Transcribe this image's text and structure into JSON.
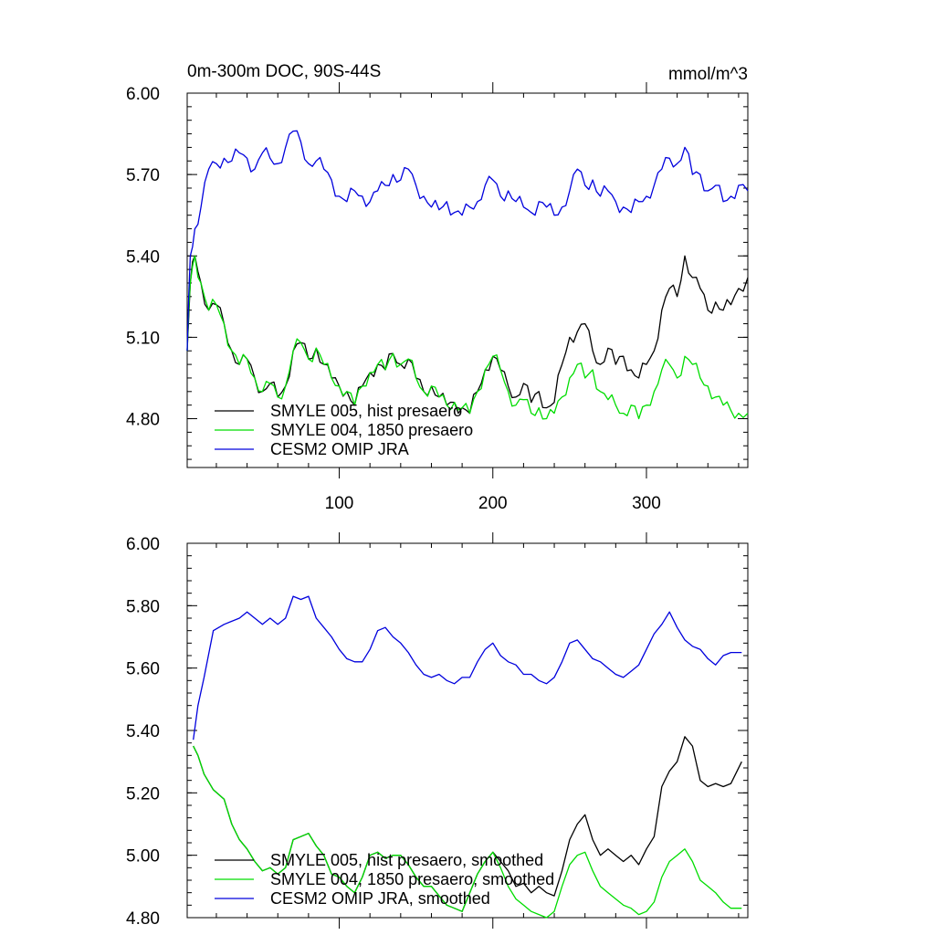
{
  "chart_data": [
    {
      "type": "line",
      "title": "0m-300m DOC, 90S-44S",
      "units": "mmol/m^3",
      "xlim": [
        1,
        366
      ],
      "ylim": [
        4.62,
        6.0
      ],
      "yticks": [
        4.8,
        5.1,
        5.4,
        5.7,
        6.0
      ],
      "ytick_labels": [
        "4.80",
        "5.10",
        "5.40",
        "5.70",
        "6.00"
      ],
      "xticks": [
        100,
        200,
        300
      ],
      "xtick_labels": [
        "100",
        "200",
        "300"
      ],
      "grid": false,
      "legend": "bottom-left",
      "series": [
        {
          "name": "SMYLE 005, hist presaero",
          "color": "#000000",
          "x": [
            1,
            3,
            6,
            10,
            15,
            20,
            25,
            30,
            35,
            40,
            45,
            50,
            55,
            60,
            65,
            70,
            75,
            80,
            85,
            90,
            95,
            100,
            105,
            110,
            115,
            120,
            125,
            130,
            135,
            140,
            145,
            150,
            155,
            160,
            165,
            170,
            175,
            180,
            185,
            190,
            195,
            200,
            205,
            210,
            215,
            220,
            225,
            230,
            235,
            240,
            245,
            250,
            255,
            260,
            265,
            270,
            275,
            280,
            285,
            290,
            295,
            300,
            305,
            310,
            315,
            320,
            325,
            330,
            335,
            340,
            345,
            350,
            355,
            360,
            366
          ],
          "y": [
            5.05,
            5.3,
            5.4,
            5.3,
            5.2,
            5.22,
            5.15,
            5.05,
            5.0,
            5.02,
            4.95,
            4.9,
            4.93,
            4.88,
            4.92,
            5.05,
            5.08,
            5.02,
            5.06,
            5.0,
            4.95,
            4.92,
            4.9,
            4.85,
            4.92,
            4.97,
            5.0,
            4.98,
            5.04,
            5.0,
            5.02,
            4.95,
            4.9,
            4.92,
            4.88,
            4.85,
            4.86,
            4.84,
            4.82,
            4.9,
            4.98,
            5.03,
            4.98,
            4.92,
            4.88,
            4.93,
            4.86,
            4.9,
            4.84,
            4.86,
            5.0,
            5.1,
            5.12,
            5.15,
            5.05,
            5.0,
            5.06,
            5.0,
            5.03,
            4.98,
            4.95,
            5.0,
            5.05,
            5.2,
            5.28,
            5.25,
            5.4,
            5.32,
            5.28,
            5.2,
            5.23,
            5.2,
            5.22,
            5.28,
            5.32
          ]
        },
        {
          "name": "SMYLE 004, 1850 presaero",
          "color": "#00dd00",
          "x": [
            1,
            3,
            6,
            10,
            15,
            20,
            25,
            30,
            35,
            40,
            45,
            50,
            55,
            60,
            65,
            70,
            75,
            80,
            85,
            90,
            95,
            100,
            105,
            110,
            115,
            120,
            125,
            130,
            135,
            140,
            145,
            150,
            155,
            160,
            165,
            170,
            175,
            180,
            185,
            190,
            195,
            200,
            205,
            210,
            215,
            220,
            225,
            230,
            235,
            240,
            245,
            250,
            255,
            260,
            265,
            270,
            275,
            280,
            285,
            290,
            295,
            300,
            305,
            310,
            315,
            320,
            325,
            330,
            335,
            340,
            345,
            350,
            355,
            360,
            366
          ],
          "y": [
            5.05,
            5.3,
            5.4,
            5.3,
            5.2,
            5.22,
            5.15,
            5.05,
            5.0,
            5.02,
            4.95,
            4.9,
            4.93,
            4.88,
            4.92,
            5.05,
            5.08,
            5.02,
            5.06,
            5.0,
            4.95,
            4.92,
            4.9,
            4.85,
            4.92,
            4.97,
            5.0,
            4.98,
            5.04,
            5.0,
            5.02,
            4.95,
            4.9,
            4.92,
            4.88,
            4.85,
            4.86,
            4.84,
            4.82,
            4.9,
            4.98,
            5.03,
            4.98,
            4.9,
            4.85,
            4.87,
            4.82,
            4.84,
            4.8,
            4.82,
            4.88,
            4.95,
            5.0,
            4.95,
            4.98,
            4.9,
            4.87,
            4.85,
            4.82,
            4.85,
            4.8,
            4.85,
            4.9,
            4.98,
            5.0,
            4.95,
            5.03,
            5.0,
            4.95,
            4.92,
            4.88,
            4.85,
            4.83,
            4.82,
            4.82
          ]
        },
        {
          "name": "CESM2 OMIP JRA",
          "color": "#0000dd",
          "x": [
            1,
            3,
            6,
            10,
            15,
            20,
            25,
            30,
            35,
            40,
            45,
            50,
            55,
            60,
            65,
            70,
            75,
            80,
            85,
            90,
            95,
            100,
            105,
            110,
            115,
            120,
            125,
            130,
            135,
            140,
            145,
            150,
            155,
            160,
            165,
            170,
            175,
            180,
            185,
            190,
            195,
            200,
            205,
            210,
            215,
            220,
            225,
            230,
            235,
            240,
            245,
            250,
            255,
            260,
            265,
            270,
            275,
            280,
            285,
            290,
            295,
            300,
            305,
            310,
            315,
            320,
            325,
            330,
            335,
            340,
            345,
            350,
            355,
            360,
            366
          ],
          "y": [
            5.05,
            5.4,
            5.5,
            5.58,
            5.72,
            5.74,
            5.76,
            5.75,
            5.78,
            5.76,
            5.72,
            5.78,
            5.76,
            5.74,
            5.8,
            5.86,
            5.82,
            5.74,
            5.75,
            5.72,
            5.68,
            5.62,
            5.6,
            5.64,
            5.62,
            5.6,
            5.64,
            5.66,
            5.7,
            5.68,
            5.72,
            5.66,
            5.62,
            5.58,
            5.57,
            5.6,
            5.56,
            5.55,
            5.58,
            5.6,
            5.66,
            5.68,
            5.62,
            5.64,
            5.6,
            5.58,
            5.56,
            5.6,
            5.58,
            5.55,
            5.58,
            5.64,
            5.72,
            5.66,
            5.68,
            5.62,
            5.64,
            5.6,
            5.58,
            5.56,
            5.6,
            5.62,
            5.66,
            5.72,
            5.76,
            5.74,
            5.8,
            5.7,
            5.7,
            5.64,
            5.66,
            5.6,
            5.62,
            5.66,
            5.64
          ]
        }
      ]
    },
    {
      "type": "line",
      "xlim": [
        1,
        366
      ],
      "ylim": [
        4.8,
        6.0
      ],
      "yticks": [
        4.8,
        5.0,
        5.2,
        5.4,
        5.6,
        5.8,
        6.0
      ],
      "ytick_labels": [
        "4.80",
        "5.00",
        "5.20",
        "5.40",
        "5.60",
        "5.80",
        "6.00"
      ],
      "xticks": [
        100,
        200,
        300
      ],
      "grid": false,
      "legend": "bottom-left",
      "series": [
        {
          "name": "SMYLE 005, hist presaero, smoothed",
          "color": "#000000",
          "x": [
            5,
            8,
            12,
            18,
            25,
            30,
            35,
            40,
            45,
            50,
            55,
            60,
            65,
            70,
            75,
            80,
            85,
            90,
            95,
            100,
            105,
            110,
            115,
            120,
            125,
            130,
            135,
            140,
            145,
            150,
            155,
            160,
            165,
            170,
            175,
            180,
            185,
            190,
            195,
            200,
            205,
            210,
            215,
            220,
            225,
            230,
            235,
            240,
            245,
            250,
            255,
            260,
            265,
            270,
            275,
            280,
            285,
            290,
            295,
            300,
            305,
            310,
            315,
            320,
            325,
            330,
            335,
            340,
            345,
            350,
            355,
            362
          ],
          "y": [
            5.35,
            5.32,
            5.26,
            5.21,
            5.18,
            5.1,
            5.05,
            5.02,
            4.98,
            4.95,
            4.96,
            4.94,
            4.96,
            5.05,
            5.06,
            5.07,
            5.03,
            5.0,
            4.94,
            4.93,
            4.9,
            4.88,
            4.93,
            5.0,
            5.01,
            4.99,
            5.0,
            5.0,
            4.97,
            4.93,
            4.9,
            4.9,
            4.87,
            4.84,
            4.83,
            4.82,
            4.88,
            4.94,
            4.98,
            5.01,
            4.98,
            4.95,
            4.9,
            4.91,
            4.88,
            4.9,
            4.88,
            4.87,
            4.95,
            5.05,
            5.1,
            5.13,
            5.05,
            5.0,
            5.02,
            5.0,
            4.98,
            5.0,
            4.97,
            5.02,
            5.06,
            5.22,
            5.27,
            5.3,
            5.38,
            5.35,
            5.24,
            5.22,
            5.23,
            5.22,
            5.23,
            5.3
          ]
        },
        {
          "name": "SMYLE 004, 1850 presaero, smoothed",
          "color": "#00dd00",
          "x": [
            5,
            8,
            12,
            18,
            25,
            30,
            35,
            40,
            45,
            50,
            55,
            60,
            65,
            70,
            75,
            80,
            85,
            90,
            95,
            100,
            105,
            110,
            115,
            120,
            125,
            130,
            135,
            140,
            145,
            150,
            155,
            160,
            165,
            170,
            175,
            180,
            185,
            190,
            195,
            200,
            205,
            210,
            215,
            220,
            225,
            230,
            235,
            240,
            245,
            250,
            255,
            260,
            265,
            270,
            275,
            280,
            285,
            290,
            295,
            300,
            305,
            310,
            315,
            320,
            325,
            330,
            335,
            340,
            345,
            350,
            355,
            362
          ],
          "y": [
            5.35,
            5.32,
            5.26,
            5.21,
            5.18,
            5.1,
            5.05,
            5.02,
            4.98,
            4.95,
            4.96,
            4.94,
            4.96,
            5.05,
            5.06,
            5.07,
            5.03,
            5.0,
            4.94,
            4.93,
            4.9,
            4.88,
            4.93,
            5.0,
            5.01,
            4.99,
            5.0,
            5.0,
            4.97,
            4.93,
            4.9,
            4.9,
            4.87,
            4.84,
            4.83,
            4.82,
            4.88,
            4.94,
            4.98,
            5.01,
            4.96,
            4.9,
            4.86,
            4.84,
            4.82,
            4.81,
            4.8,
            4.82,
            4.9,
            4.97,
            5.0,
            5.01,
            4.95,
            4.9,
            4.88,
            4.86,
            4.84,
            4.83,
            4.81,
            4.82,
            4.85,
            4.93,
            4.98,
            5.0,
            5.02,
            4.98,
            4.92,
            4.9,
            4.88,
            4.85,
            4.83,
            4.83
          ]
        },
        {
          "name": "CESM2 OMIP JRA, smoothed",
          "color": "#0000dd",
          "x": [
            5,
            8,
            12,
            18,
            25,
            30,
            35,
            40,
            45,
            50,
            55,
            60,
            65,
            70,
            75,
            80,
            85,
            90,
            95,
            100,
            105,
            110,
            115,
            120,
            125,
            130,
            135,
            140,
            145,
            150,
            155,
            160,
            165,
            170,
            175,
            180,
            185,
            190,
            195,
            200,
            205,
            210,
            215,
            220,
            225,
            230,
            235,
            240,
            245,
            250,
            255,
            260,
            265,
            270,
            275,
            280,
            285,
            290,
            295,
            300,
            305,
            310,
            315,
            320,
            325,
            330,
            335,
            340,
            345,
            350,
            355,
            362
          ],
          "y": [
            5.37,
            5.48,
            5.57,
            5.72,
            5.74,
            5.75,
            5.76,
            5.78,
            5.76,
            5.74,
            5.76,
            5.74,
            5.76,
            5.83,
            5.82,
            5.83,
            5.76,
            5.73,
            5.7,
            5.66,
            5.63,
            5.62,
            5.62,
            5.66,
            5.72,
            5.73,
            5.7,
            5.68,
            5.65,
            5.61,
            5.58,
            5.57,
            5.58,
            5.56,
            5.55,
            5.57,
            5.57,
            5.62,
            5.66,
            5.68,
            5.64,
            5.62,
            5.61,
            5.58,
            5.58,
            5.56,
            5.55,
            5.57,
            5.62,
            5.68,
            5.69,
            5.66,
            5.63,
            5.62,
            5.6,
            5.58,
            5.57,
            5.59,
            5.61,
            5.66,
            5.71,
            5.74,
            5.78,
            5.73,
            5.69,
            5.67,
            5.66,
            5.63,
            5.61,
            5.64,
            5.65,
            5.65
          ]
        }
      ]
    }
  ]
}
